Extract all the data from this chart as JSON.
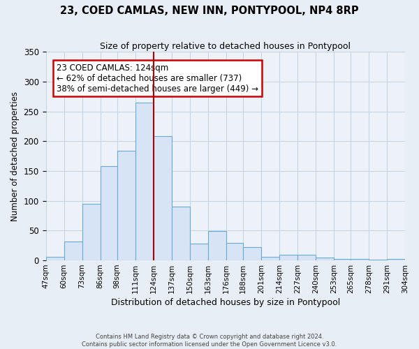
{
  "title": "23, COED CAMLAS, NEW INN, PONTYPOOL, NP4 8RP",
  "subtitle": "Size of property relative to detached houses in Pontypool",
  "xlabel": "Distribution of detached houses by size in Pontypool",
  "ylabel": "Number of detached properties",
  "bin_edges": [
    47,
    60,
    73,
    86,
    98,
    111,
    124,
    137,
    150,
    163,
    176,
    188,
    201,
    214,
    227,
    240,
    253,
    265,
    278,
    291,
    304
  ],
  "bar_heights": [
    6,
    32,
    95,
    158,
    184,
    265,
    208,
    90,
    28,
    49,
    29,
    22,
    6,
    9,
    10,
    5,
    3,
    2,
    1,
    2
  ],
  "tick_labels": [
    "47sqm",
    "60sqm",
    "73sqm",
    "86sqm",
    "98sqm",
    "111sqm",
    "124sqm",
    "137sqm",
    "150sqm",
    "163sqm",
    "176sqm",
    "188sqm",
    "201sqm",
    "214sqm",
    "227sqm",
    "240sqm",
    "253sqm",
    "265sqm",
    "278sqm",
    "291sqm",
    "304sqm"
  ],
  "bar_color": "#d6e4f5",
  "bar_edge_color": "#6aaad4",
  "vline_x": 124,
  "vline_color": "#aa0000",
  "ylim": [
    0,
    350
  ],
  "yticks": [
    0,
    50,
    100,
    150,
    200,
    250,
    300,
    350
  ],
  "annotation_title": "23 COED CAMLAS: 124sqm",
  "annotation_line1": "← 62% of detached houses are smaller (737)",
  "annotation_line2": "38% of semi-detached houses are larger (449) →",
  "annotation_box_color": "white",
  "annotation_box_edge_color": "#cc0000",
  "footer1": "Contains HM Land Registry data © Crown copyright and database right 2024.",
  "footer2": "Contains public sector information licensed under the Open Government Licence v3.0.",
  "fig_bg_color": "#e8eef5",
  "plot_bg_color": "#edf2f9"
}
